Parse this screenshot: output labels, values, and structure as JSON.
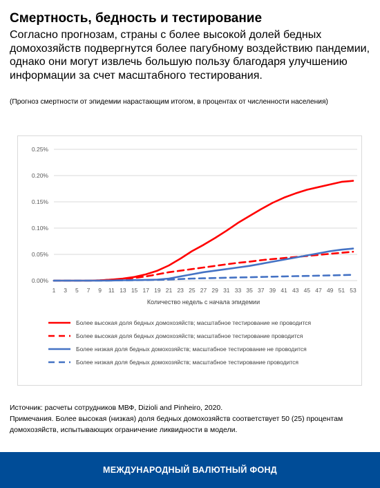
{
  "header": {
    "title": "Смертность, бедность и тестирование",
    "subtitle": "Согласно прогнозам, страны с более высокой долей бедных домохозяйств подвергнутся более пагубному воздействию пандемии, однако они могут извлечь большую пользу благодаря улучшению информации за счет масштабного тестирования.",
    "note": "(Прогноз смертности от эпидемии нарастающим итогом, в процентах от численности населения)"
  },
  "chart_data": {
    "type": "line",
    "xlabel": "Количество недель с начала эпидемии",
    "ylabel": "",
    "x": [
      1,
      3,
      5,
      7,
      9,
      11,
      13,
      15,
      17,
      19,
      21,
      23,
      25,
      27,
      29,
      31,
      33,
      35,
      37,
      39,
      41,
      43,
      45,
      47,
      49,
      51,
      53
    ],
    "x_tick_labels": [
      "1",
      "3",
      "5",
      "7",
      "9",
      "11",
      "13",
      "15",
      "17",
      "19",
      "21",
      "23",
      "25",
      "27",
      "29",
      "31",
      "33",
      "35",
      "37",
      "39",
      "41",
      "43",
      "45",
      "47",
      "49",
      "51",
      "53"
    ],
    "y_tick_labels": [
      "0.00%",
      "0.05%",
      "0.10%",
      "0.15%",
      "0.20%",
      "0.25%"
    ],
    "ylim": [
      0,
      0.25
    ],
    "grid": true,
    "legend_position": "bottom",
    "series": [
      {
        "name": "Более высокая доля бедных домохозяйств; масштабное тестирование не проводится",
        "color": "#ff0000",
        "dash": "solid",
        "values": [
          0,
          0,
          0,
          0,
          0.0005,
          0.002,
          0.004,
          0.007,
          0.012,
          0.019,
          0.029,
          0.042,
          0.056,
          0.068,
          0.081,
          0.095,
          0.11,
          0.123,
          0.136,
          0.148,
          0.158,
          0.166,
          0.173,
          0.178,
          0.183,
          0.188,
          0.19
        ]
      },
      {
        "name": "Более высокая доля бедных домохозяйств; масштабное тестирование проводится",
        "color": "#ff0000",
        "dash": "dashed",
        "values": [
          0,
          0,
          0,
          0,
          0.0005,
          0.002,
          0.003,
          0.005,
          0.008,
          0.012,
          0.016,
          0.019,
          0.022,
          0.025,
          0.028,
          0.031,
          0.034,
          0.036,
          0.039,
          0.041,
          0.043,
          0.045,
          0.047,
          0.049,
          0.051,
          0.053,
          0.055
        ]
      },
      {
        "name": "Более низкая доля бедных домохозяйств; масштабное тестирование не проводится",
        "color": "#4472c4",
        "dash": "solid",
        "values": [
          0,
          0,
          0,
          0,
          0,
          0.0003,
          0.0006,
          0.001,
          0.0015,
          0.002,
          0.004,
          0.008,
          0.012,
          0.016,
          0.019,
          0.022,
          0.025,
          0.028,
          0.032,
          0.036,
          0.04,
          0.044,
          0.048,
          0.052,
          0.056,
          0.059,
          0.061
        ]
      },
      {
        "name": "Более низкая доля бедных домохозяйств; масштабное тестирование проводится",
        "color": "#4472c4",
        "dash": "dashed",
        "values": [
          0,
          0,
          0,
          0,
          0,
          0.0003,
          0.0005,
          0.0008,
          0.001,
          0.0015,
          0.002,
          0.003,
          0.004,
          0.0045,
          0.005,
          0.0055,
          0.006,
          0.0065,
          0.007,
          0.0075,
          0.008,
          0.0085,
          0.009,
          0.0095,
          0.01,
          0.0105,
          0.011
        ]
      }
    ]
  },
  "source": {
    "line1": "Источник: расчеты сотрудников МВФ, Dizioli and Pinheiro, 2020.",
    "line2": "Примечания. Более высокая (низкая) доля бедных домохозяйств соответствует 50 (25) процентам домохозяйств, испытывающих ограничение ликвидности в модели."
  },
  "footer": {
    "label": "МЕЖДУНАРОДНЫЙ ВАЛЮТНЫЙ ФОНД"
  }
}
